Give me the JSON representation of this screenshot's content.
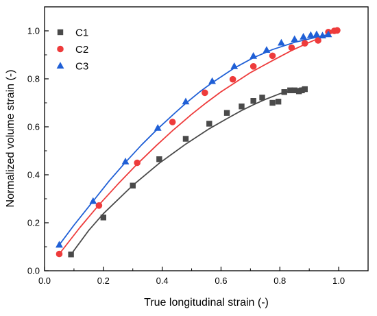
{
  "chart_data": {
    "type": "scatter",
    "xlabel": "True longitudinal strain (-)",
    "ylabel": "Normalized volume strain (-)",
    "xlim": [
      0,
      1.1
    ],
    "ylim": [
      0,
      1.1
    ],
    "x_ticks": [
      "0.0",
      "0.2",
      "0.4",
      "0.6",
      "0.8",
      "1.0"
    ],
    "y_ticks": [
      "0.0",
      "0.2",
      "0.4",
      "0.6",
      "0.8",
      "1.0"
    ],
    "grid": false,
    "legend_position": "top-left",
    "series": [
      {
        "name": "C1",
        "marker": "square",
        "color": "#4a4a4a",
        "x": [
          0.09,
          0.2,
          0.3,
          0.39,
          0.48,
          0.56,
          0.62,
          0.67,
          0.71,
          0.74,
          0.775,
          0.795,
          0.815,
          0.835,
          0.85,
          0.865,
          0.875,
          0.885
        ],
        "y": [
          0.068,
          0.222,
          0.355,
          0.465,
          0.55,
          0.613,
          0.658,
          0.685,
          0.708,
          0.722,
          0.7,
          0.705,
          0.745,
          0.752,
          0.752,
          0.748,
          0.752,
          0.757
        ],
        "fit_x": [
          0.09,
          0.15,
          0.2,
          0.3,
          0.39,
          0.48,
          0.56,
          0.62,
          0.67,
          0.71,
          0.75,
          0.8,
          0.85,
          0.885
        ],
        "fit_y": [
          0.068,
          0.168,
          0.238,
          0.356,
          0.448,
          0.528,
          0.592,
          0.634,
          0.668,
          0.692,
          0.714,
          0.738,
          0.756,
          0.765
        ]
      },
      {
        "name": "C2",
        "marker": "circle",
        "color": "#ee3b3b",
        "x": [
          0.05,
          0.185,
          0.315,
          0.435,
          0.545,
          0.64,
          0.71,
          0.775,
          0.84,
          0.885,
          0.93,
          0.965,
          0.985,
          0.995
        ],
        "y": [
          0.07,
          0.272,
          0.45,
          0.62,
          0.742,
          0.798,
          0.852,
          0.896,
          0.93,
          0.948,
          0.96,
          0.995,
          1.0,
          1.002
        ],
        "fit_x": [
          0.05,
          0.12,
          0.185,
          0.25,
          0.315,
          0.38,
          0.435,
          0.5,
          0.545,
          0.6,
          0.64,
          0.7,
          0.775,
          0.84,
          0.9,
          0.95,
          1.0
        ],
        "fit_y": [
          0.07,
          0.18,
          0.275,
          0.362,
          0.445,
          0.522,
          0.584,
          0.652,
          0.696,
          0.746,
          0.778,
          0.826,
          0.876,
          0.918,
          0.952,
          0.978,
          1.002
        ]
      },
      {
        "name": "C3",
        "marker": "triangle",
        "color": "#1f5fd6",
        "x": [
          0.05,
          0.165,
          0.275,
          0.385,
          0.48,
          0.57,
          0.645,
          0.71,
          0.755,
          0.805,
          0.85,
          0.88,
          0.905,
          0.925,
          0.945,
          0.965
        ],
        "y": [
          0.108,
          0.29,
          0.455,
          0.595,
          0.705,
          0.79,
          0.852,
          0.895,
          0.92,
          0.95,
          0.965,
          0.975,
          0.982,
          0.985,
          0.98,
          0.985
        ],
        "fit_x": [
          0.05,
          0.1,
          0.165,
          0.22,
          0.275,
          0.33,
          0.385,
          0.44,
          0.48,
          0.53,
          0.57,
          0.645,
          0.71,
          0.775,
          0.85,
          0.905,
          0.965
        ],
        "fit_y": [
          0.108,
          0.19,
          0.29,
          0.375,
          0.452,
          0.525,
          0.592,
          0.654,
          0.698,
          0.748,
          0.784,
          0.845,
          0.888,
          0.922,
          0.952,
          0.968,
          0.985
        ]
      }
    ]
  }
}
